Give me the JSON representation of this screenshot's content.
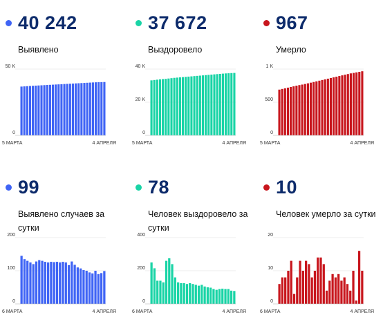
{
  "colors": {
    "blue": "#3f64f5",
    "teal": "#19d4a6",
    "red": "#c8161d",
    "text": "#0d2b6b"
  },
  "stats": [
    {
      "value": "40 242",
      "label": "Выявлено",
      "color": "#3f64f5"
    },
    {
      "value": "37 672",
      "label": "Выздоровело",
      "color": "#19d4a6"
    },
    {
      "value": "967",
      "label": "Умерло",
      "color": "#c8161d"
    },
    {
      "value": "99",
      "label": "Выявлено случаев за сутки",
      "color": "#3f64f5"
    },
    {
      "value": "78",
      "label": "Человек выздоровело за сутки",
      "color": "#19d4a6"
    },
    {
      "value": "10",
      "label": "Человек умерло за сутки",
      "color": "#c8161d"
    }
  ],
  "chart_data": [
    {
      "type": "bar",
      "color": "#3f64f5",
      "ylim": [
        0,
        50000
      ],
      "yticks": [
        {
          "v": 50000,
          "label": "50 K"
        },
        {
          "v": 0,
          "label": "0"
        }
      ],
      "x_start": "5 МАРТА",
      "x_end": "4 АПРЕЛЯ",
      "values": [
        36800,
        36950,
        37100,
        37250,
        37400,
        37520,
        37640,
        37760,
        37880,
        38000,
        38120,
        38240,
        38360,
        38480,
        38600,
        38720,
        38840,
        38960,
        39080,
        39200,
        39320,
        39440,
        39560,
        39680,
        39800,
        39920,
        40030,
        40100,
        40170,
        40242
      ]
    },
    {
      "type": "bar",
      "color": "#19d4a6",
      "ylim": [
        0,
        40000
      ],
      "yticks": [
        {
          "v": 40000,
          "label": "40 K"
        },
        {
          "v": 20000,
          "label": "20 K"
        },
        {
          "v": 0,
          "label": "0"
        }
      ],
      "x_start": "5 МАРТА",
      "x_end": "4 АПРЕЛЯ",
      "values": [
        33200,
        33400,
        33600,
        33800,
        33950,
        34100,
        34300,
        34500,
        34700,
        34850,
        35000,
        35150,
        35300,
        35450,
        35600,
        35750,
        35900,
        36050,
        36200,
        36350,
        36500,
        36650,
        36800,
        36950,
        37100,
        37250,
        37380,
        37480,
        37590,
        37672
      ]
    },
    {
      "type": "bar",
      "color": "#c8161d",
      "ylim": [
        0,
        1000
      ],
      "yticks": [
        {
          "v": 1000,
          "label": "1 K"
        },
        {
          "v": 500,
          "label": "500"
        },
        {
          "v": 0,
          "label": "0"
        }
      ],
      "x_start": "5 МАРТА",
      "x_end": "4 АПРЕЛЯ",
      "values": [
        690,
        700,
        710,
        720,
        730,
        740,
        750,
        758,
        766,
        775,
        785,
        795,
        805,
        815,
        825,
        835,
        845,
        855,
        865,
        875,
        885,
        895,
        905,
        915,
        925,
        935,
        942,
        950,
        958,
        967
      ]
    },
    {
      "type": "bar",
      "color": "#3f64f5",
      "ylim": [
        0,
        200
      ],
      "yticks": [
        {
          "v": 200,
          "label": "200"
        },
        {
          "v": 100,
          "label": "100"
        },
        {
          "v": 0,
          "label": "0"
        }
      ],
      "x_start": "6 МАРТА",
      "x_end": "4 АПРЕЛЯ",
      "values": [
        145,
        135,
        130,
        125,
        120,
        128,
        132,
        130,
        127,
        125,
        127,
        126,
        127,
        125,
        127,
        125,
        117,
        128,
        118,
        110,
        107,
        102,
        100,
        95,
        92,
        100,
        90,
        93,
        99
      ]
    },
    {
      "type": "bar",
      "color": "#19d4a6",
      "ylim": [
        0,
        400
      ],
      "yticks": [
        {
          "v": 400,
          "label": "400"
        },
        {
          "v": 200,
          "label": "200"
        },
        {
          "v": 0,
          "label": "0"
        }
      ],
      "x_start": "6 МАРТА",
      "x_end": "4 АПРЕЛЯ",
      "values": [
        250,
        215,
        140,
        140,
        130,
        260,
        275,
        240,
        160,
        130,
        125,
        125,
        120,
        125,
        120,
        115,
        110,
        115,
        105,
        100,
        98,
        90,
        85,
        90,
        92,
        90,
        90,
        80,
        78
      ]
    },
    {
      "type": "bar",
      "color": "#c8161d",
      "ylim": [
        0,
        20
      ],
      "yticks": [
        {
          "v": 20,
          "label": "20"
        },
        {
          "v": 10,
          "label": "10"
        },
        {
          "v": 0,
          "label": "0"
        }
      ],
      "x_start": "6 МАРТА",
      "x_end": "4 АПРЕЛЯ",
      "values": [
        6,
        8,
        8,
        10,
        13,
        3,
        8,
        13,
        10,
        13,
        12,
        8,
        10,
        14,
        14,
        12,
        4,
        7,
        9,
        8,
        9,
        7,
        8,
        6,
        4,
        10,
        1,
        16,
        10
      ]
    }
  ]
}
